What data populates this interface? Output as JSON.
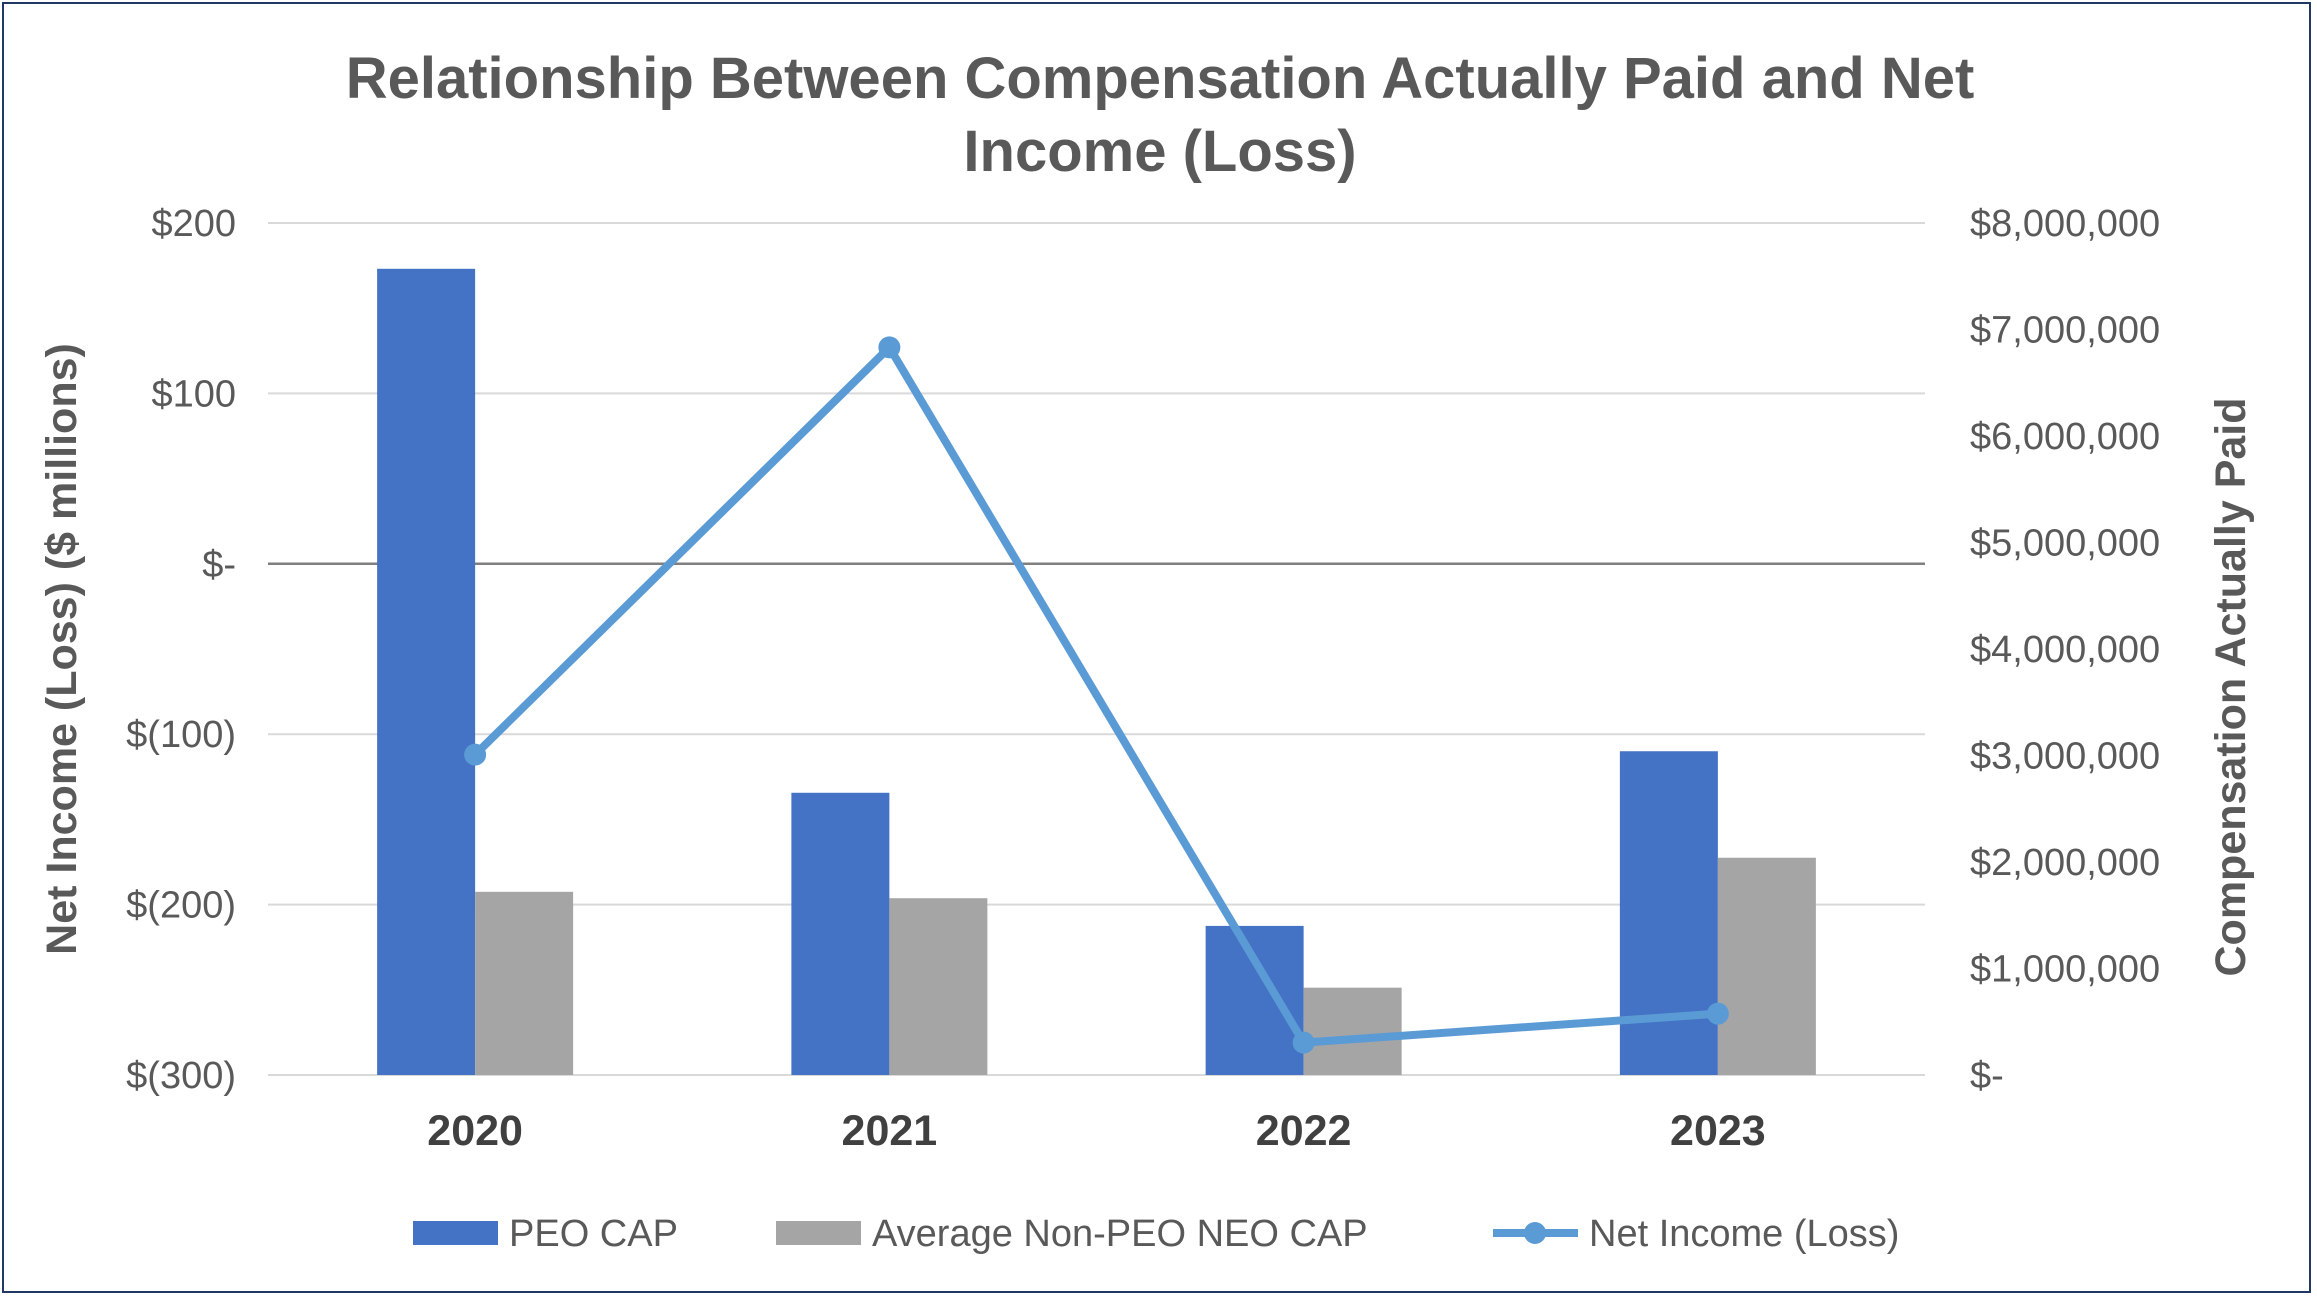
{
  "chart_data": {
    "type": "bar",
    "title": "Relationship Between Compensation Actually Paid and Net Income (Loss)",
    "title_lines": [
      "Relationship Between Compensation Actually Paid and Net",
      "Income (Loss)"
    ],
    "categories": [
      "2020",
      "2021",
      "2022",
      "2023"
    ],
    "left_axis": {
      "label": "Net Income (Loss) ($ millions)",
      "ylim": [
        -300,
        200
      ],
      "ticks": [
        200,
        100,
        0,
        -100,
        -200,
        -300
      ],
      "tick_labels": [
        "$200",
        "$100",
        "$-",
        "$(100)",
        "$(200)",
        "$(300)"
      ]
    },
    "right_axis": {
      "label": "Compensation Actually Paid",
      "ylim": [
        0,
        8000000
      ],
      "ticks": [
        8000000,
        7000000,
        6000000,
        5000000,
        4000000,
        3000000,
        2000000,
        1000000,
        0
      ],
      "tick_labels": [
        "$8,000,000",
        "$7,000,000",
        "$6,000,000",
        "$5,000,000",
        "$4,000,000",
        "$3,000,000",
        "$2,000,000",
        "$1,000,000",
        "$-"
      ]
    },
    "series": [
      {
        "name": "PEO CAP",
        "type": "bar",
        "axis": "right",
        "color": "#4472c4",
        "values": [
          7570000,
          2650000,
          1400000,
          3040000
        ]
      },
      {
        "name": "Average Non-PEO NEO CAP",
        "type": "bar",
        "axis": "right",
        "color": "#a5a5a5",
        "values": [
          1720000,
          1660000,
          820000,
          2040000
        ]
      },
      {
        "name": "Net Income (Loss)",
        "type": "line",
        "axis": "left",
        "color": "#5b9bd5",
        "values": [
          -112,
          127,
          -281,
          -264
        ]
      }
    ],
    "grid": true,
    "legend_position": "bottom"
  }
}
